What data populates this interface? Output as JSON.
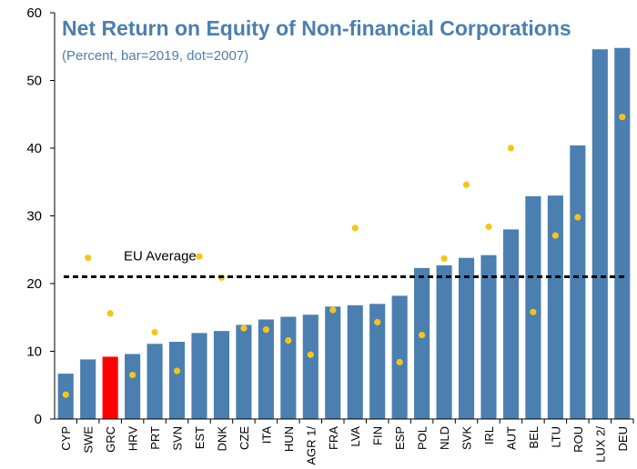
{
  "chart_data": {
    "type": "bar",
    "title": "Net Return on Equity of Non-financial Corporations",
    "subtitle": "(Percent, bar=2019, dot=2007)",
    "categories": [
      "CYP",
      "SWE",
      "GRC",
      "HRV",
      "PRT",
      "SVN",
      "EST",
      "DNK",
      "CZE",
      "ITA",
      "HUN",
      "AGR 1/",
      "FRA",
      "LVA",
      "FIN",
      "ESP",
      "POL",
      "NLD",
      "SVK",
      "IRL",
      "AUT",
      "BEL",
      "LTU",
      "ROU",
      "LUX 2/",
      "DEU"
    ],
    "series": [
      {
        "values": [
          6.7,
          8.8,
          9.2,
          9.6,
          11.1,
          11.4,
          12.7,
          13.0,
          13.9,
          14.7,
          15.1,
          15.4,
          16.6,
          16.8,
          17.0,
          18.2,
          22.3,
          22.7,
          23.8,
          24.2,
          28.0,
          32.9,
          33.0,
          40.4,
          54.6,
          54.8
        ]
      },
      {
        "values": [
          3.6,
          23.8,
          15.6,
          6.5,
          12.8,
          7.1,
          24.0,
          20.9,
          13.4,
          13.2,
          11.6,
          9.5,
          16.1,
          28.2,
          14.3,
          8.4,
          12.4,
          23.7,
          34.6,
          28.4,
          40.0,
          15.8,
          27.1,
          29.8,
          null,
          44.6
        ]
      }
    ],
    "highlight_category": "GRC",
    "reference_line": {
      "label": "EU Average",
      "value": 21.0
    },
    "ylim": [
      0,
      60
    ],
    "yticks": [
      0,
      10,
      20,
      30,
      40,
      50,
      60
    ],
    "grid": false,
    "colors": {
      "bar": "#4a7fb0",
      "highlight": "#ff0000",
      "dot": "#f5c518",
      "title": "#4a7fb0",
      "reference_line": "#000000",
      "axis": "#000000"
    }
  }
}
